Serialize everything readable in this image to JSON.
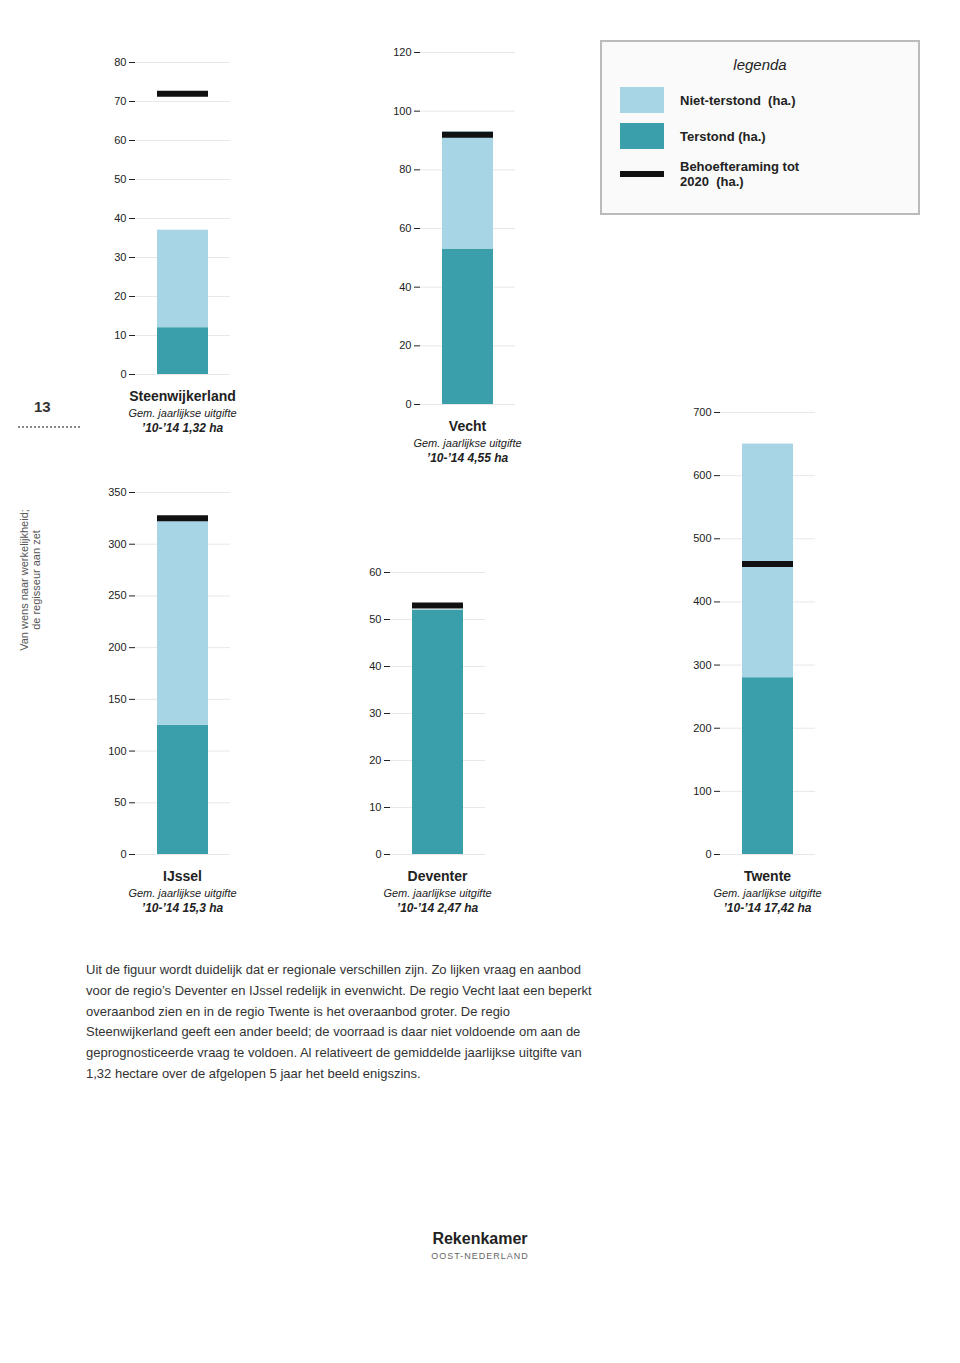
{
  "chart_data": [
    {
      "type": "bar",
      "title": "Steenwijkerland",
      "stacked": true,
      "grid": true,
      "tick_labels": "y",
      "categories": [
        null
      ],
      "series": [
        {
          "name": "Terstond (ha.)",
          "color": "#3a9faa",
          "values": [
            12
          ]
        },
        {
          "name": "Niet-terstond  (ha.)",
          "color": "#a8d5e5",
          "values": [
            25
          ]
        },
        {
          "name": "Behoefteraming tot\n2020  (ha.)",
          "type": "line",
          "color": "#111111",
          "values": [
            72
          ]
        }
      ],
      "ylim": [
        0,
        80
      ],
      "yticks": [
        0,
        10,
        20,
        30,
        40,
        50,
        60,
        70,
        80
      ],
      "annotations": [
        "Gem. jaarlijkse uitgifte",
        "’10-’14 1,32 ha"
      ]
    },
    {
      "type": "bar",
      "title": "Vecht",
      "stacked": true,
      "grid": true,
      "tick_labels": "y",
      "categories": [
        null
      ],
      "series": [
        {
          "name": "Terstond (ha.)",
          "color": "#3a9faa",
          "values": [
            53
          ]
        },
        {
          "name": "Niet-terstond  (ha.)",
          "color": "#a8d5e5",
          "values": [
            40
          ]
        },
        {
          "name": "Behoefteraming tot\n2020  (ha.)",
          "type": "line",
          "color": "#111111",
          "values": [
            92
          ]
        }
      ],
      "ylim": [
        0,
        120
      ],
      "yticks": [
        0,
        20,
        40,
        60,
        80,
        100,
        120
      ],
      "annotations": [
        "Gem. jaarlijkse uitgifte",
        "’10-’14 4,55 ha"
      ]
    },
    {
      "type": "bar",
      "title": "IJssel",
      "stacked": true,
      "grid": true,
      "tick_labels": "y",
      "categories": [
        null
      ],
      "series": [
        {
          "name": "Terstond (ha.)",
          "color": "#3a9faa",
          "values": [
            125
          ]
        },
        {
          "name": "Niet-terstond  (ha.)",
          "color": "#a8d5e5",
          "values": [
            200
          ]
        },
        {
          "name": "Behoefteraming tot\n2020  (ha.)",
          "type": "line",
          "color": "#111111",
          "values": [
            325
          ]
        }
      ],
      "ylim": [
        0,
        350
      ],
      "yticks": [
        0,
        50,
        100,
        150,
        200,
        250,
        300,
        350
      ],
      "annotations": [
        "Gem. jaarlijkse uitgifte",
        "’10-’14 15,3 ha"
      ]
    },
    {
      "type": "bar",
      "title": "Deventer",
      "stacked": true,
      "grid": true,
      "tick_labels": "y",
      "categories": [
        null
      ],
      "series": [
        {
          "name": "Terstond (ha.)",
          "color": "#3a9faa",
          "values": [
            52
          ]
        },
        {
          "name": "Niet-terstond  (ha.)",
          "color": "#a8d5e5",
          "values": [
            0
          ]
        },
        {
          "name": "Behoefteraming tot\n2020  (ha.)",
          "type": "line",
          "color": "#111111",
          "values": [
            53
          ]
        }
      ],
      "ylim": [
        0,
        60
      ],
      "yticks": [
        0,
        10,
        20,
        30,
        40,
        50,
        60
      ],
      "annotations": [
        "Gem. jaarlijkse uitgifte",
        "’10-’14 2,47 ha"
      ]
    },
    {
      "type": "bar",
      "title": "Twente",
      "stacked": true,
      "grid": true,
      "tick_labels": "y",
      "categories": [
        null
      ],
      "series": [
        {
          "name": "Terstond (ha.)",
          "color": "#3a9faa",
          "values": [
            280
          ]
        },
        {
          "name": "Niet-terstond  (ha.)",
          "color": "#a8d5e5",
          "values": [
            370
          ]
        },
        {
          "name": "Behoefteraming tot\n2020  (ha.)",
          "type": "line",
          "color": "#111111",
          "values": [
            460
          ]
        }
      ],
      "ylim": [
        0,
        700
      ],
      "yticks": [
        0,
        100,
        200,
        300,
        400,
        500,
        600,
        700
      ],
      "annotations": [
        "Gem. jaarlijkse uitgifte",
        "’10-’14 17,42 ha"
      ]
    }
  ],
  "annotations": [
    "legenda",
    "Uit de figuur wordt duidelijk dat er regionale verschillen zijn. Zo lijken vraag en aanbod\nvoor de regio’s Deventer en IJssel redelijk in evenwicht. De regio Vecht laat een beperkt\noveraanbod zien en in de regio Twente is het overaanbod groter. De regio\nSteenwijkerland geeft een ander beeld; de voorraad is daar niet voldoende om aan de\ngeprognosticeerde vraag te voldoen. Al relativeert de gemiddelde jaarlijkse uitgifte van\n1,32 hectare over de afgelopen 5 jaar het beeld enigszins.",
    "Van wens naar werkelijkheid;\nde regisseur aan zet",
    "13",
    "Rekenkamer",
    "OOST-NEDERLAND"
  ]
}
